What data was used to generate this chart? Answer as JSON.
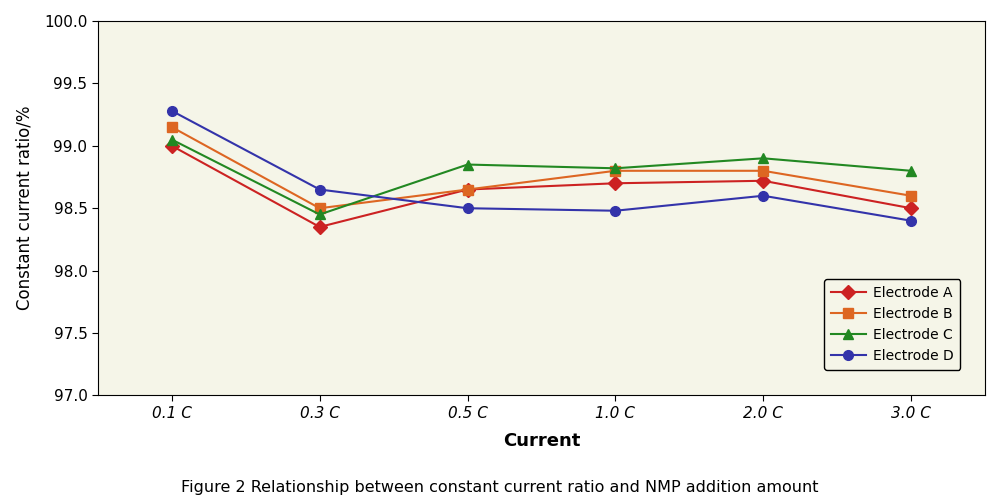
{
  "x_labels": [
    "0.1 C",
    "0.3 C",
    "0.5 C",
    "1.0 C",
    "2.0 C",
    "3.0 C"
  ],
  "x_positions": [
    0,
    1,
    2,
    3,
    4,
    5
  ],
  "electrode_A": [
    99.0,
    98.35,
    98.65,
    98.7,
    98.72,
    98.5
  ],
  "electrode_B": [
    99.15,
    98.5,
    98.65,
    98.8,
    98.8,
    98.6
  ],
  "electrode_C": [
    99.05,
    98.45,
    98.85,
    98.82,
    98.9,
    98.8
  ],
  "electrode_D": [
    99.28,
    98.65,
    98.5,
    98.48,
    98.6,
    98.4
  ],
  "color_A": "#cc2222",
  "color_B": "#dd6622",
  "color_C": "#228822",
  "color_D": "#3333aa",
  "ylabel": "Constant current ratio/%",
  "xlabel": "Current",
  "ylim_min": 97.0,
  "ylim_max": 100.0,
  "ytick_step": 0.5,
  "legend_labels": [
    "Electrode A",
    "Electrode B",
    "Electrode C",
    "Electrode D"
  ],
  "caption": "Figure 2 Relationship between constant current ratio and NMP addition amount",
  "bg_color": "#f5f5e8",
  "fig_bg_color": "#ffffff",
  "linewidth": 1.5,
  "markersize": 7
}
